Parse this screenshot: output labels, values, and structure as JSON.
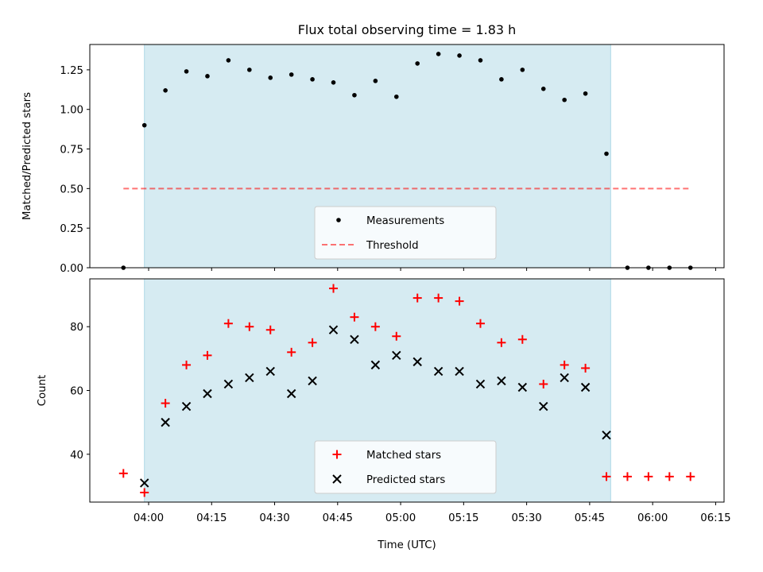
{
  "colors": {
    "observing_span": "#add8e6",
    "measurements": "#000000",
    "threshold": "#ff0000",
    "matched": "#ff0000",
    "predicted": "#000000"
  },
  "chart_data": [
    {
      "type": "scatter",
      "title": "Flux total observing time = 1.83 h",
      "xlabel": "",
      "ylabel": "Matched/Predicted stars",
      "xlim": [
        "03:46",
        "06:17"
      ],
      "ylim": [
        0,
        1.41
      ],
      "yticks": [
        "0.00",
        "0.25",
        "0.50",
        "0.75",
        "1.00",
        "1.25"
      ],
      "observing_span": [
        "03:59",
        "05:50"
      ],
      "legend_position": "lower center",
      "x": [
        "03:54",
        "03:59",
        "04:04",
        "04:09",
        "04:14",
        "04:19",
        "04:24",
        "04:29",
        "04:34",
        "04:39",
        "04:44",
        "04:49",
        "04:54",
        "04:59",
        "05:04",
        "05:09",
        "05:14",
        "05:19",
        "05:24",
        "05:29",
        "05:34",
        "05:39",
        "05:44",
        "05:49",
        "05:54",
        "05:59",
        "06:04",
        "06:09"
      ],
      "series": [
        {
          "name": "Measurements",
          "marker": "dot",
          "values": [
            0.0,
            0.9,
            1.12,
            1.24,
            1.21,
            1.31,
            1.25,
            1.2,
            1.22,
            1.19,
            1.17,
            1.09,
            1.18,
            1.08,
            1.29,
            1.35,
            1.34,
            1.31,
            1.19,
            1.25,
            1.13,
            1.06,
            1.1,
            0.72,
            0.0,
            0.0,
            0.0,
            0.0
          ]
        },
        {
          "name": "Threshold",
          "marker": "dashed-line",
          "x": [
            "03:54",
            "06:09"
          ],
          "values": [
            0.5,
            0.5
          ]
        }
      ]
    },
    {
      "type": "scatter",
      "title": "",
      "xlabel": "Time (UTC)",
      "ylabel": "Count",
      "xlim": [
        "03:46",
        "06:17"
      ],
      "ylim": [
        25,
        95
      ],
      "yticks": [
        "40",
        "60",
        "80"
      ],
      "xticks": [
        "04:00",
        "04:15",
        "04:30",
        "04:45",
        "05:00",
        "05:15",
        "05:30",
        "05:45",
        "06:00",
        "06:15"
      ],
      "observing_span": [
        "03:59",
        "05:50"
      ],
      "legend_position": "lower center",
      "series": [
        {
          "name": "Matched stars",
          "marker": "plus",
          "x": [
            "03:54",
            "03:59",
            "04:04",
            "04:09",
            "04:14",
            "04:19",
            "04:24",
            "04:29",
            "04:34",
            "04:39",
            "04:44",
            "04:49",
            "04:54",
            "04:59",
            "05:04",
            "05:09",
            "05:14",
            "05:19",
            "05:24",
            "05:29",
            "05:34",
            "05:39",
            "05:44",
            "05:49",
            "05:54",
            "05:59",
            "06:04",
            "06:09"
          ],
          "values": [
            34,
            28,
            56,
            68,
            71,
            81,
            80,
            79,
            72,
            75,
            92,
            83,
            80,
            77,
            89,
            89,
            88,
            81,
            75,
            76,
            62,
            68,
            67,
            33,
            33,
            33,
            33,
            33
          ]
        },
        {
          "name": "Predicted stars",
          "marker": "x",
          "x": [
            "03:59",
            "04:04",
            "04:09",
            "04:14",
            "04:19",
            "04:24",
            "04:29",
            "04:34",
            "04:39",
            "04:44",
            "04:49",
            "04:54",
            "04:59",
            "05:04",
            "05:09",
            "05:14",
            "05:19",
            "05:24",
            "05:29",
            "05:34",
            "05:39",
            "05:44",
            "05:49"
          ],
          "values": [
            31,
            50,
            55,
            59,
            62,
            64,
            66,
            59,
            63,
            79,
            76,
            68,
            71,
            69,
            66,
            66,
            62,
            63,
            61,
            55,
            64,
            61,
            46
          ]
        }
      ]
    }
  ]
}
